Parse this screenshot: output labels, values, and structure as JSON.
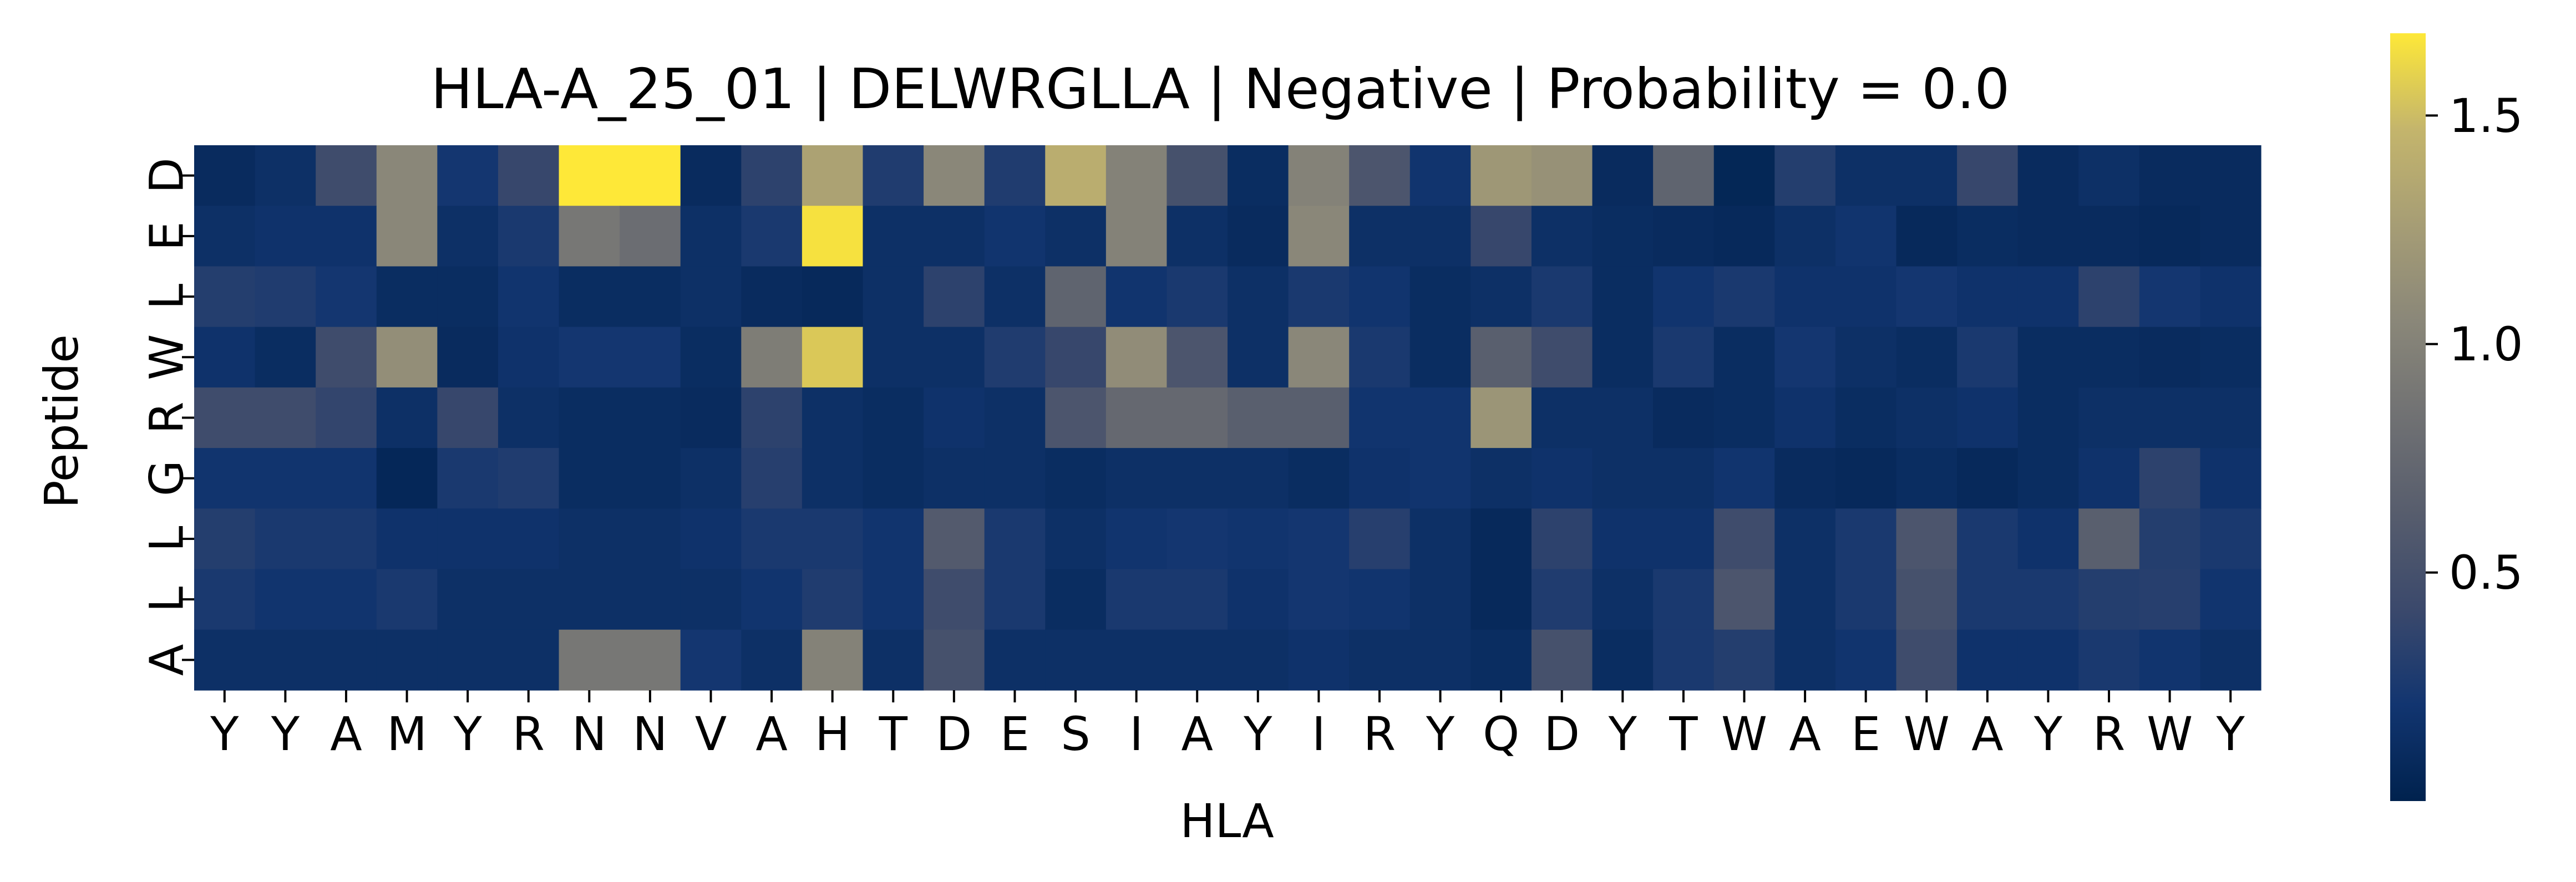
{
  "chart_data": {
    "type": "heatmap",
    "title": "HLA-A_25_01 | DELWRGLLA | Negative | Probability = 0.0",
    "xlabel": "HLA",
    "ylabel": "Peptide",
    "x_ticks": [
      "Y",
      "Y",
      "A",
      "M",
      "Y",
      "R",
      "N",
      "N",
      "V",
      "A",
      "H",
      "T",
      "D",
      "E",
      "S",
      "I",
      "A",
      "Y",
      "I",
      "R",
      "Y",
      "Q",
      "D",
      "Y",
      "T",
      "W",
      "A",
      "E",
      "W",
      "A",
      "Y",
      "R",
      "W",
      "Y"
    ],
    "y_ticks": [
      "D",
      "E",
      "L",
      "W",
      "R",
      "G",
      "L",
      "L",
      "A"
    ],
    "colormap": "cividis",
    "colorbar": {
      "min": 0.0,
      "max": 1.68,
      "ticks": [
        0.5,
        1.0,
        1.5
      ],
      "tick_labels": [
        "0.5",
        "1.0",
        "1.5"
      ]
    },
    "values": [
      [
        0.1,
        0.15,
        0.45,
        1.05,
        0.22,
        0.4,
        1.68,
        1.68,
        0.1,
        0.35,
        1.3,
        0.28,
        1.05,
        0.28,
        1.4,
        1.0,
        0.5,
        0.12,
        1.0,
        0.55,
        0.2,
        1.2,
        1.15,
        0.1,
        0.7,
        0.05,
        0.3,
        0.15,
        0.15,
        0.4,
        0.1,
        0.15,
        0.1,
        0.1
      ],
      [
        0.15,
        0.18,
        0.18,
        1.05,
        0.15,
        0.25,
        0.9,
        0.8,
        0.15,
        0.25,
        1.65,
        0.15,
        0.15,
        0.2,
        0.15,
        1.0,
        0.15,
        0.1,
        1.05,
        0.15,
        0.15,
        0.4,
        0.15,
        0.12,
        0.1,
        0.08,
        0.15,
        0.2,
        0.08,
        0.12,
        0.1,
        0.1,
        0.08,
        0.1
      ],
      [
        0.3,
        0.28,
        0.22,
        0.12,
        0.12,
        0.2,
        0.12,
        0.12,
        0.15,
        0.1,
        0.08,
        0.15,
        0.35,
        0.15,
        0.7,
        0.2,
        0.25,
        0.15,
        0.25,
        0.2,
        0.12,
        0.15,
        0.25,
        0.12,
        0.2,
        0.25,
        0.18,
        0.18,
        0.22,
        0.18,
        0.18,
        0.35,
        0.22,
        0.18
      ],
      [
        0.18,
        0.12,
        0.45,
        1.12,
        0.1,
        0.18,
        0.22,
        0.22,
        0.12,
        0.95,
        1.55,
        0.15,
        0.15,
        0.28,
        0.4,
        1.1,
        0.55,
        0.15,
        1.05,
        0.25,
        0.12,
        0.65,
        0.45,
        0.12,
        0.25,
        0.12,
        0.22,
        0.15,
        0.12,
        0.25,
        0.12,
        0.12,
        0.1,
        0.12
      ],
      [
        0.45,
        0.45,
        0.38,
        0.15,
        0.4,
        0.15,
        0.12,
        0.12,
        0.1,
        0.35,
        0.15,
        0.12,
        0.18,
        0.15,
        0.55,
        0.75,
        0.75,
        0.65,
        0.65,
        0.2,
        0.2,
        1.18,
        0.15,
        0.15,
        0.1,
        0.12,
        0.18,
        0.12,
        0.15,
        0.18,
        0.12,
        0.15,
        0.15,
        0.15
      ],
      [
        0.2,
        0.2,
        0.2,
        0.06,
        0.25,
        0.28,
        0.12,
        0.12,
        0.15,
        0.32,
        0.15,
        0.12,
        0.15,
        0.15,
        0.12,
        0.15,
        0.15,
        0.15,
        0.12,
        0.18,
        0.2,
        0.15,
        0.18,
        0.15,
        0.15,
        0.2,
        0.1,
        0.08,
        0.12,
        0.08,
        0.12,
        0.18,
        0.35,
        0.18
      ],
      [
        0.3,
        0.25,
        0.25,
        0.18,
        0.18,
        0.18,
        0.15,
        0.15,
        0.18,
        0.25,
        0.25,
        0.2,
        0.6,
        0.25,
        0.15,
        0.2,
        0.22,
        0.2,
        0.22,
        0.32,
        0.15,
        0.08,
        0.35,
        0.18,
        0.18,
        0.45,
        0.15,
        0.25,
        0.55,
        0.25,
        0.18,
        0.65,
        0.3,
        0.25
      ],
      [
        0.25,
        0.2,
        0.2,
        0.25,
        0.15,
        0.15,
        0.15,
        0.15,
        0.15,
        0.2,
        0.28,
        0.2,
        0.45,
        0.25,
        0.12,
        0.25,
        0.25,
        0.18,
        0.22,
        0.2,
        0.15,
        0.08,
        0.28,
        0.15,
        0.25,
        0.55,
        0.15,
        0.25,
        0.5,
        0.25,
        0.25,
        0.3,
        0.32,
        0.2
      ],
      [
        0.15,
        0.15,
        0.15,
        0.15,
        0.15,
        0.15,
        0.9,
        0.9,
        0.22,
        0.15,
        1.0,
        0.15,
        0.5,
        0.15,
        0.15,
        0.15,
        0.15,
        0.15,
        0.18,
        0.15,
        0.15,
        0.12,
        0.5,
        0.12,
        0.25,
        0.3,
        0.15,
        0.2,
        0.45,
        0.18,
        0.18,
        0.25,
        0.2,
        0.15
      ]
    ]
  }
}
